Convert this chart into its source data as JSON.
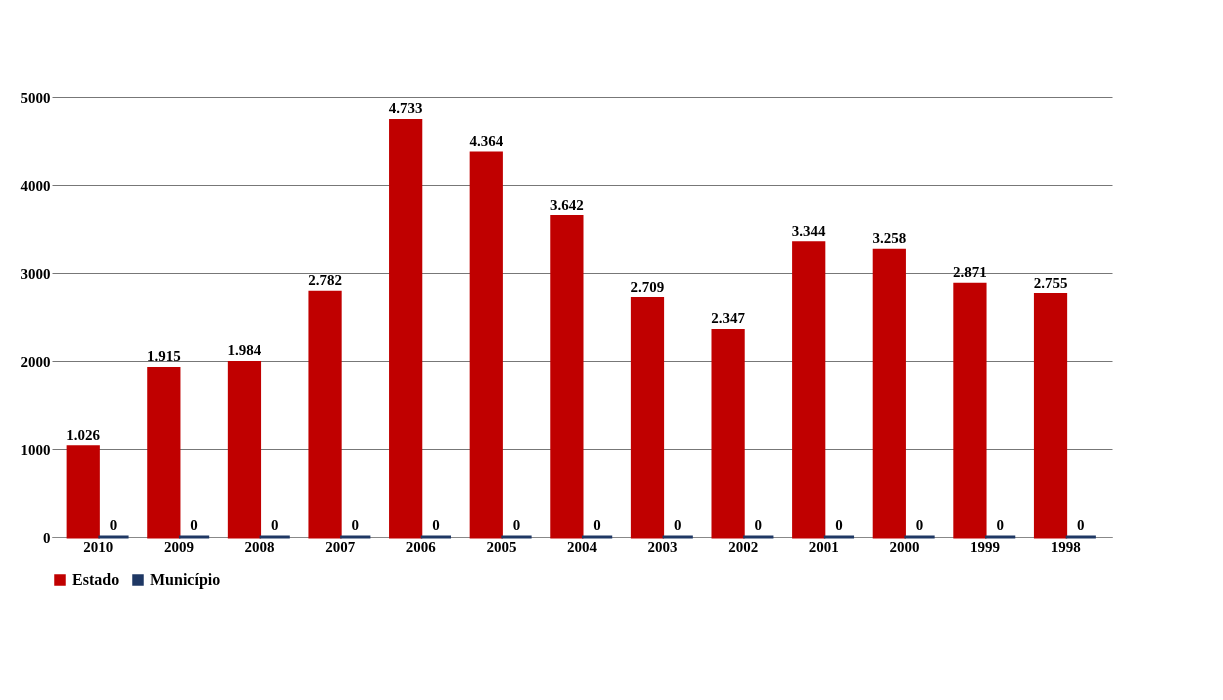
{
  "chart_data": {
    "type": "bar",
    "categories": [
      "2010",
      "2009",
      "2008",
      "2007",
      "2006",
      "2005",
      "2004",
      "2003",
      "2002",
      "2001",
      "2000",
      "1999",
      "1998"
    ],
    "series": [
      {
        "name": "Estado",
        "color": "#c00000",
        "values": [
          1026,
          1915,
          1984,
          2782,
          4733,
          4364,
          3642,
          2709,
          2347,
          3344,
          3258,
          2871,
          2755
        ],
        "value_labels": [
          "1.026",
          "1.915",
          "1.984",
          "2.782",
          "4.733",
          "4.364",
          "3.642",
          "2.709",
          "2.347",
          "3.344",
          "3.258",
          "2.871",
          "2.755"
        ]
      },
      {
        "name": "Município",
        "color": "#1f3864",
        "values": [
          0,
          0,
          0,
          0,
          0,
          0,
          0,
          0,
          0,
          0,
          0,
          0,
          0
        ],
        "value_labels": [
          "0",
          "0",
          "0",
          "0",
          "0",
          "0",
          "0",
          "0",
          "0",
          "0",
          "0",
          "0",
          "0"
        ]
      }
    ],
    "ylim": [
      0,
      5000
    ],
    "yticks": [
      0,
      1000,
      2000,
      3000,
      4000,
      5000
    ],
    "grid": "y",
    "legend": "bottom"
  }
}
